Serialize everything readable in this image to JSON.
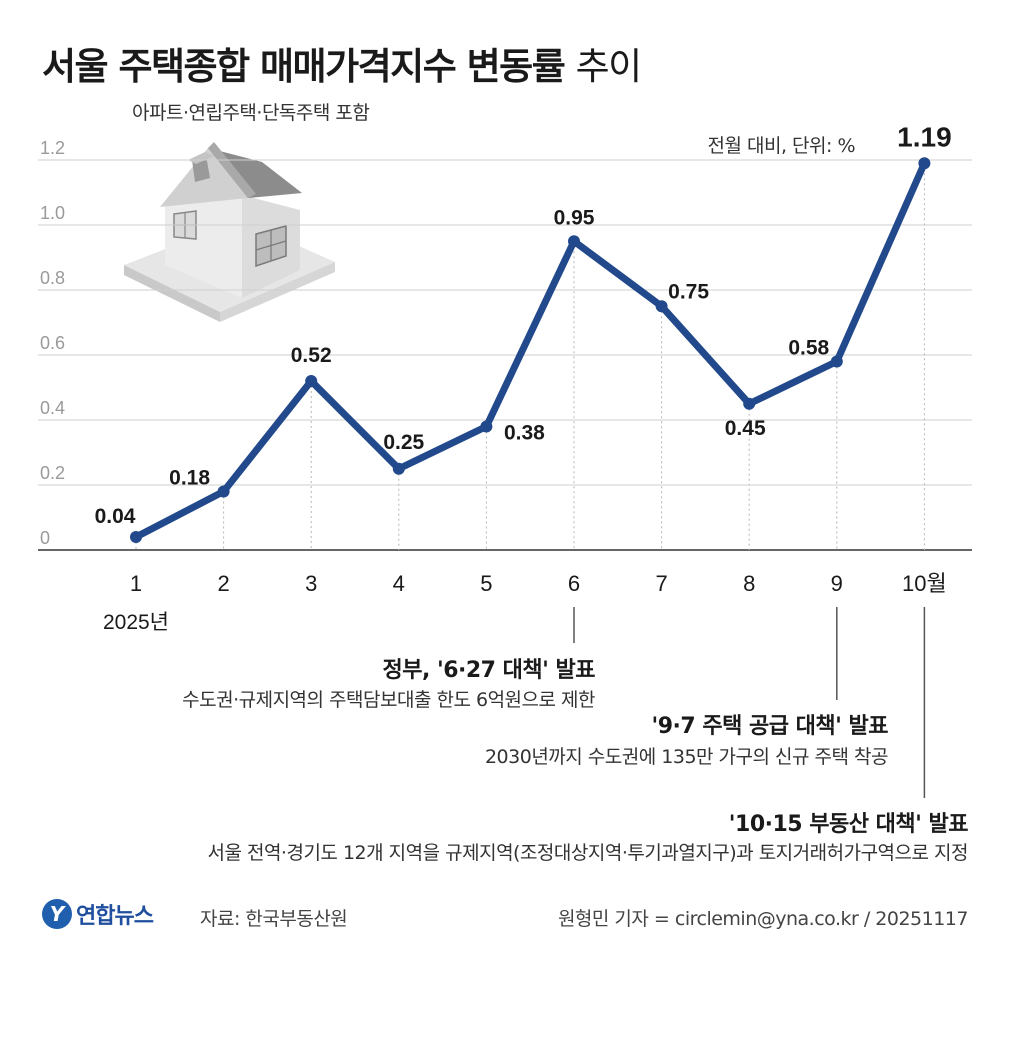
{
  "header": {
    "title_bold": "서울 주택종합 매매가격지수 변동률",
    "title_light": "추이",
    "subtitle": "아파트·연립주택·단독주택 포함",
    "unit": "전월 대비, 단위: %"
  },
  "chart_data": {
    "type": "line",
    "categories": [
      "1",
      "2",
      "3",
      "4",
      "5",
      "6",
      "7",
      "8",
      "9",
      "10월"
    ],
    "year_label": "2025년",
    "values": [
      0.04,
      0.18,
      0.52,
      0.25,
      0.38,
      0.95,
      0.75,
      0.45,
      0.58,
      1.19
    ],
    "data_labels": [
      "0.04",
      "0.18",
      "0.52",
      "0.25",
      "0.38",
      "0.95",
      "0.75",
      "0.45",
      "0.58",
      "1.19"
    ],
    "y_ticks": [
      "0",
      "0.2",
      "0.4",
      "0.6",
      "0.8",
      "1.0",
      "1.2"
    ],
    "y_tick_values": [
      0,
      0.2,
      0.4,
      0.6,
      0.8,
      1.0,
      1.2
    ],
    "ylim": [
      0,
      1.2
    ],
    "grid": true,
    "line_color": "#22498c"
  },
  "annotations": [
    {
      "month_index": 5,
      "title": "정부, '6·27 대책' 발표",
      "desc": "수도권·규제지역의 주택담보대출 한도 6억원으로 제한"
    },
    {
      "month_index": 8,
      "title": "'9·7 주택 공급 대책' 발표",
      "desc": "2030년까지 수도권에 135만 가구의 신규 주택 착공"
    },
    {
      "month_index": 9,
      "title": "'10·15 부동산 대책' 발표",
      "desc": "서울 전역·경기도 12개 지역을 규제지역(조정대상지역·투기과열지구)과 토지거래허가구역으로 지정"
    }
  ],
  "footer": {
    "logo_mark": "Y",
    "logo_text": "연합뉴스",
    "source": "자료: 한국부동산원",
    "credit": "원형민 기자 = circlemin@yna.co.kr / 20251117"
  },
  "colors": {
    "line": "#22498c",
    "grid": "#cfcfcf",
    "text": "#1a1a1a",
    "logo": "#1f5fae"
  }
}
